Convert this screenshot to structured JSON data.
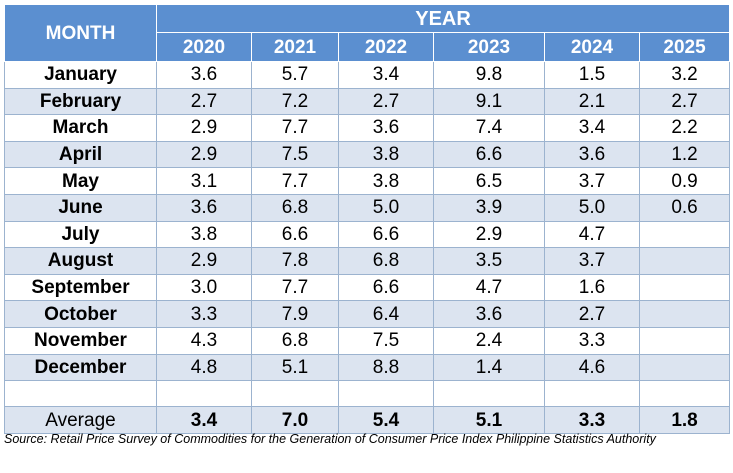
{
  "header": {
    "month_label": "MONTH",
    "year_label": "YEAR",
    "years": [
      "2020",
      "2021",
      "2022",
      "2023",
      "2024",
      "2025"
    ]
  },
  "rows": [
    {
      "month": "January",
      "values": [
        "3.6",
        "5.7",
        "3.4",
        "9.8",
        "1.5",
        "3.2"
      ]
    },
    {
      "month": "February",
      "values": [
        "2.7",
        "7.2",
        "2.7",
        "9.1",
        "2.1",
        "2.7"
      ]
    },
    {
      "month": "March",
      "values": [
        "2.9",
        "7.7",
        "3.6",
        "7.4",
        "3.4",
        "2.2"
      ]
    },
    {
      "month": "April",
      "values": [
        "2.9",
        "7.5",
        "3.8",
        "6.6",
        "3.6",
        "1.2"
      ]
    },
    {
      "month": "May",
      "values": [
        "3.1",
        "7.7",
        "3.8",
        "6.5",
        "3.7",
        "0.9"
      ]
    },
    {
      "month": "June",
      "values": [
        "3.6",
        "6.8",
        "5.0",
        "3.9",
        "5.0",
        "0.6"
      ]
    },
    {
      "month": "July",
      "values": [
        "3.8",
        "6.6",
        "6.6",
        "2.9",
        "4.7",
        ""
      ]
    },
    {
      "month": "August",
      "values": [
        "2.9",
        "7.8",
        "6.8",
        "3.5",
        "3.7",
        ""
      ]
    },
    {
      "month": "September",
      "values": [
        "3.0",
        "7.7",
        "6.6",
        "4.7",
        "1.6",
        ""
      ]
    },
    {
      "month": "October",
      "values": [
        "3.3",
        "7.9",
        "6.4",
        "3.6",
        "2.7",
        ""
      ]
    },
    {
      "month": "November",
      "values": [
        "4.3",
        "6.8",
        "7.5",
        "2.4",
        "3.3",
        ""
      ]
    },
    {
      "month": "December",
      "values": [
        "4.8",
        "5.1",
        "8.8",
        "1.4",
        "4.6",
        ""
      ]
    }
  ],
  "average": {
    "label": "Average",
    "values": [
      "3.4",
      "7.0",
      "5.4",
      "5.1",
      "3.3",
      "1.8"
    ]
  },
  "source": "Source: Retail Price Survey of Commodities for the Generation of Consumer Price Index Philippine Statistics Authority",
  "colors": {
    "header_bg": "#5b8fd0",
    "band_bg": "#dce4f0",
    "border": "#9cb3cf"
  }
}
